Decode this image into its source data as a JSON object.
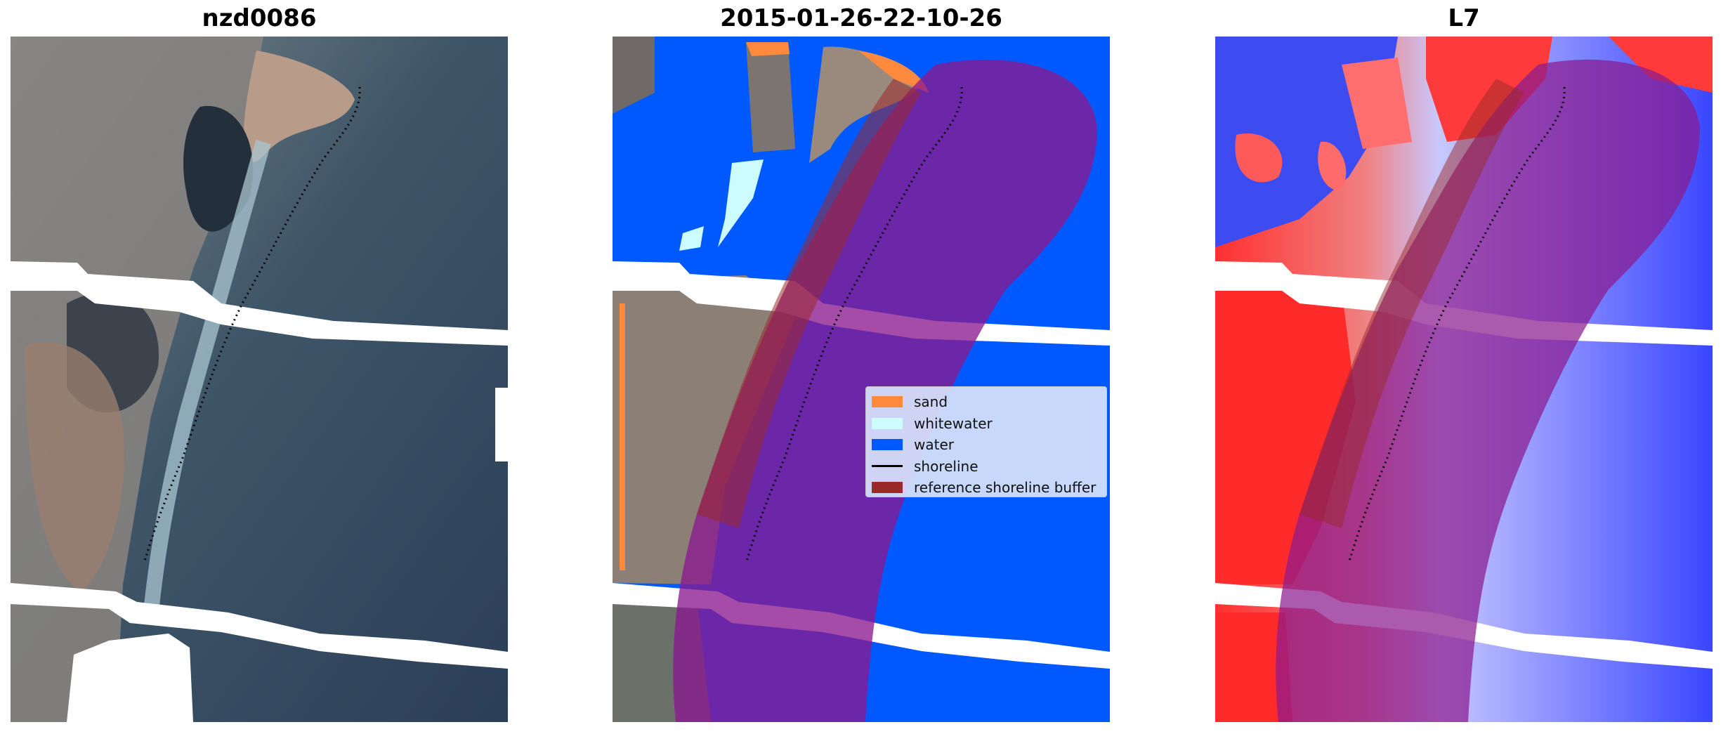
{
  "panels": [
    {
      "title": "nzd0086"
    },
    {
      "title": "2015-01-26-22-10-26"
    },
    {
      "title": "L7"
    }
  ],
  "legend": {
    "items": [
      {
        "label": "sand",
        "color": "#ff8a3d"
      },
      {
        "label": "whitewater",
        "color": "#cdfcff"
      },
      {
        "label": "water",
        "color": "#0058ff"
      },
      {
        "label": "shoreline",
        "color": "#000000",
        "kind": "line"
      },
      {
        "label": "reference shoreline buffer",
        "color": "#9a2a2a"
      }
    ]
  },
  "colors": {
    "buffer_overlay": "#8b1a8f",
    "water_class": "#0058ff",
    "index_positive": "#ff2020",
    "index_negative": "#3a46ff",
    "nodata": "#ffffff"
  }
}
